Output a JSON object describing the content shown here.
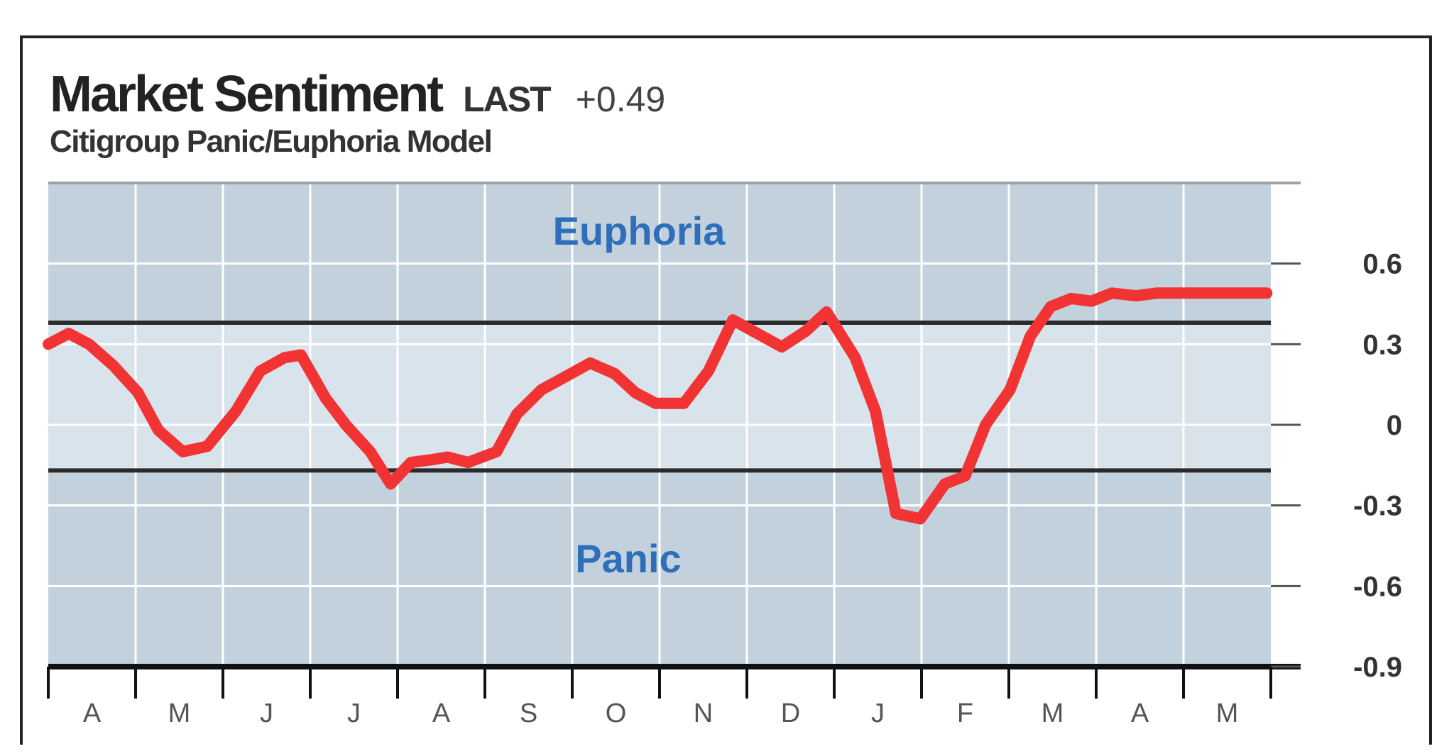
{
  "header": {
    "title": "Market Sentiment",
    "last_label": "LAST",
    "last_value": "+0.49",
    "subtitle": "Citigroup Panic/Euphoria Model"
  },
  "colors": {
    "zone_dark": "#c2d1dc",
    "zone_light": "#d8e3ec",
    "line": "#f23333",
    "zone_label": "#2f6fba",
    "threshold": "#2b2b2b"
  },
  "chart_data": {
    "type": "line",
    "title": "Market Sentiment",
    "subtitle": "Citigroup Panic/Euphoria Model",
    "ylim": [
      -0.9,
      0.9
    ],
    "y_ticks": [
      0.6,
      0.3,
      0,
      -0.3,
      -0.6,
      -0.9
    ],
    "y_tick_labels": [
      "0.6",
      "0.3",
      "0",
      "-0.3",
      "-0.6",
      "-0.9"
    ],
    "x_tick_labels": [
      "A",
      "M",
      "J",
      "J",
      "A",
      "S",
      "O",
      "N",
      "D",
      "J",
      "F",
      "M",
      "A",
      "M"
    ],
    "zone_labels": {
      "upper": "Euphoria",
      "lower": "Panic"
    },
    "thresholds": {
      "euphoria": 0.38,
      "panic": -0.17
    },
    "grid": true,
    "x_range": [
      0,
      15
    ],
    "series": [
      {
        "x": [
          0,
          0.25,
          0.5,
          0.8,
          1.1,
          1.35,
          1.65,
          1.95,
          2.3,
          2.6,
          2.9,
          3.1,
          3.4,
          3.65,
          3.95,
          4.2,
          4.45,
          4.7,
          4.9,
          5.15,
          5.5,
          5.75,
          6.05,
          6.35,
          6.65,
          6.95,
          7.2,
          7.45,
          7.8,
          8.1,
          8.4,
          8.7,
          9.0,
          9.3,
          9.55,
          9.9,
          10.15,
          10.4,
          10.7,
          11.0,
          11.25,
          11.5,
          11.8,
          12.05,
          12.3,
          12.55,
          12.8,
          13.05,
          13.35,
          13.6,
          13.95,
          14.25,
          14.5,
          14.75,
          14.95
        ],
        "y": [
          0.3,
          0.34,
          0.3,
          0.22,
          0.12,
          -0.02,
          -0.1,
          -0.08,
          0.05,
          0.2,
          0.25,
          0.26,
          0.1,
          0.0,
          -0.1,
          -0.22,
          -0.14,
          -0.13,
          -0.12,
          -0.14,
          -0.1,
          0.04,
          0.13,
          0.18,
          0.23,
          0.19,
          0.12,
          0.08,
          0.08,
          0.2,
          0.39,
          0.34,
          0.29,
          0.35,
          0.42,
          0.25,
          0.05,
          -0.33,
          -0.35,
          -0.22,
          -0.19,
          0.0,
          0.13,
          0.33,
          0.44,
          0.47,
          0.46,
          0.49,
          0.48,
          0.49,
          0.49,
          0.49,
          0.49,
          0.49,
          0.49
        ]
      }
    ]
  }
}
